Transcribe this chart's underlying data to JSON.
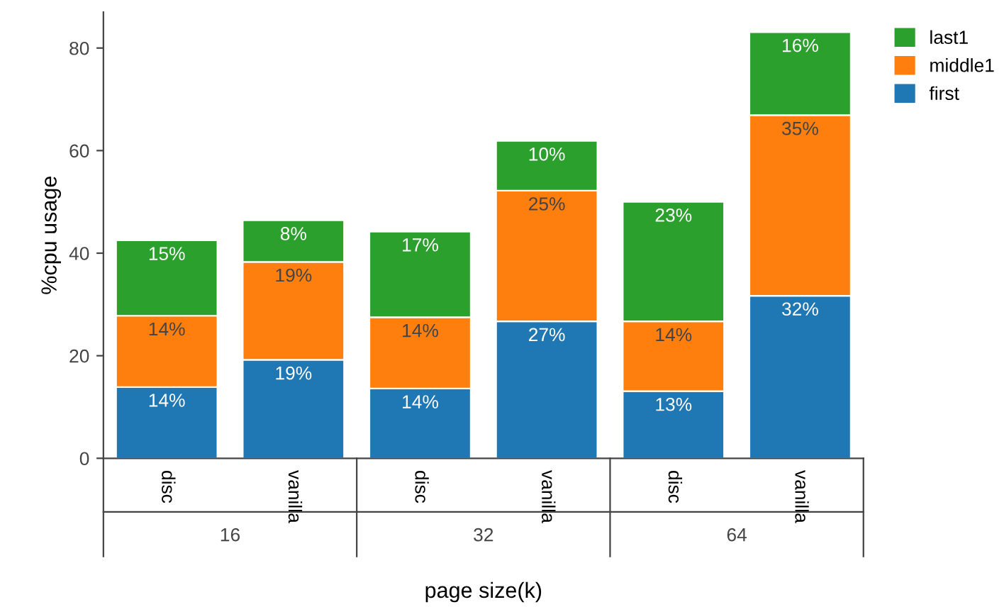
{
  "chart_data": {
    "type": "bar",
    "stacked": true,
    "xlabel": "page size(k)",
    "ylabel": "%cpu usage",
    "categories": [
      "disc",
      "vanilla",
      "disc",
      "vanilla",
      "disc",
      "vanilla"
    ],
    "annotations": [
      "16",
      "32",
      "64"
    ],
    "series": [
      {
        "name": "first",
        "color": "#1f77b4",
        "values": [
          13.9,
          19.2,
          13.6,
          26.7,
          13.1,
          31.7
        ],
        "value_labels": [
          "14%",
          "19%",
          "14%",
          "27%",
          "13%",
          "32%"
        ]
      },
      {
        "name": "middle1",
        "color": "#ff7f0e",
        "values": [
          13.9,
          19.1,
          13.9,
          25.5,
          13.6,
          35.2
        ],
        "value_labels": [
          "14%",
          "19%",
          "14%",
          "25%",
          "14%",
          "35%"
        ]
      },
      {
        "name": "last1",
        "color": "#2ca02c",
        "values": [
          14.7,
          8.1,
          16.7,
          9.7,
          23.3,
          16.2
        ],
        "value_labels": [
          "15%",
          "8%",
          "17%",
          "10%",
          "23%",
          "16%"
        ]
      }
    ],
    "ylim": [
      0,
      87
    ],
    "yticks": [
      0,
      20,
      40,
      60,
      80
    ],
    "grid": false,
    "legend": "top right"
  }
}
